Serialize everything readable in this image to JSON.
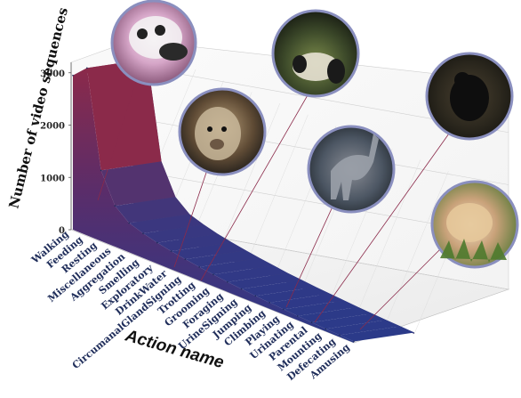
{
  "chart_data": {
    "type": "area",
    "title": "",
    "xlabel": "Action name",
    "ylabel": "Number of video sequences",
    "ylim": [
      0,
      3200
    ],
    "yticks": [
      0,
      1000,
      2000,
      3000
    ],
    "grid": true,
    "categories": [
      "Walking",
      "Feeding",
      "Resting",
      "Miscellaneous",
      "Aggregation",
      "Smelling",
      "Exploratory",
      "DrinkWater",
      "CircumanalGlandSigning",
      "Trotting",
      "Grooming",
      "Foraging",
      "UrineSigning",
      "Jumping",
      "Climbing",
      "Playing",
      "Urinating",
      "Parental",
      "Mounting",
      "Defecating",
      "Amusing"
    ],
    "values": [
      2950,
      3200,
      1350,
      780,
      560,
      470,
      400,
      345,
      300,
      260,
      225,
      190,
      165,
      140,
      120,
      100,
      80,
      65,
      50,
      38,
      25
    ],
    "colors": {
      "high": "#8b2a4a",
      "low": "#2a3a8a"
    }
  }
}
